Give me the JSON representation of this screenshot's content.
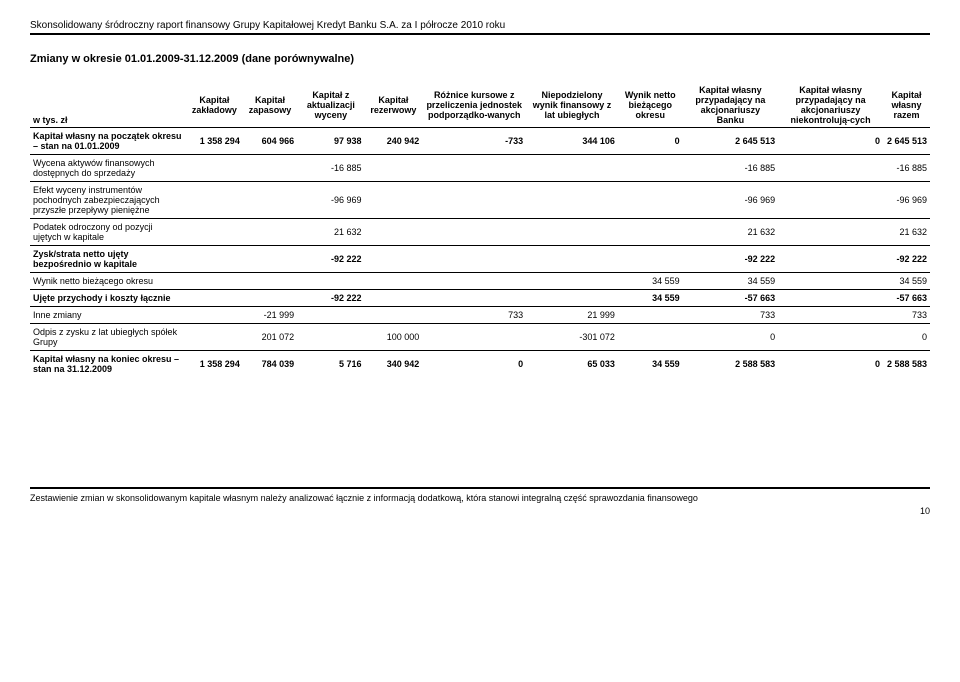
{
  "header": "Skonsolidowany śródroczny raport finansowy Grupy Kapitałowej Kredyt Banku S.A. za I półrocze 2010 roku",
  "title": "Zmiany w okresie 01.01.2009-31.12.2009 (dane porównywalne)",
  "unit_label": "w tys. zł",
  "columns": [
    "Kapitał zakładowy",
    "Kapitał zapasowy",
    "Kapitał z aktualizacji wyceny",
    "Kapitał rezerwowy",
    "Różnice kursowe z przeliczenia jednostek podporządko-wanych",
    "Niepodzielony wynik finansowy z lat ubiegłych",
    "Wynik netto bieżącego okresu",
    "Kapitał własny przypadający na akcjonariuszy Banku",
    "Kapitał własny przypadający na akcjonariuszy niekontrolują-cych",
    "Kapitał własny razem"
  ],
  "rows": [
    {
      "label": "Kapitał własny na początek okresu – stan na 01.01.2009",
      "bold": true,
      "sep": false,
      "cells": [
        "1 358 294",
        "604 966",
        "97 938",
        "240 942",
        "-733",
        "344 106",
        "0",
        "2 645 513",
        "0",
        "2 645 513"
      ]
    },
    {
      "label": "Wycena aktywów finansowych dostępnych do sprzedaży",
      "bold": false,
      "sep": true,
      "cells": [
        "",
        "",
        "-16 885",
        "",
        "",
        "",
        "",
        "-16 885",
        "",
        "-16 885"
      ]
    },
    {
      "label": "Efekt wyceny instrumentów pochodnych zabezpieczających przyszłe przepływy pieniężne",
      "bold": false,
      "sep": true,
      "cells": [
        "",
        "",
        "-96 969",
        "",
        "",
        "",
        "",
        "-96 969",
        "",
        "-96 969"
      ]
    },
    {
      "label": "Podatek odroczony od pozycji ujętych w kapitale",
      "bold": false,
      "sep": true,
      "cells": [
        "",
        "",
        "21 632",
        "",
        "",
        "",
        "",
        "21 632",
        "",
        "21 632"
      ]
    },
    {
      "label": "Zysk/strata netto ujęty bezpośrednio w kapitale",
      "bold": true,
      "sep": true,
      "cells": [
        "",
        "",
        "-92 222",
        "",
        "",
        "",
        "",
        "-92 222",
        "",
        "-92 222"
      ]
    },
    {
      "label": "Wynik netto bieżącego okresu",
      "bold": false,
      "sep": true,
      "cells": [
        "",
        "",
        "",
        "",
        "",
        "",
        "34 559",
        "34 559",
        "",
        "34 559"
      ]
    },
    {
      "label": "Ujęte przychody i koszty łącznie",
      "bold": true,
      "sep": true,
      "cells": [
        "",
        "",
        "-92 222",
        "",
        "",
        "",
        "34 559",
        "-57 663",
        "",
        "-57 663"
      ]
    },
    {
      "label": "Inne zmiany",
      "bold": false,
      "sep": true,
      "cells": [
        "",
        "-21 999",
        "",
        "",
        "733",
        "21 999",
        "",
        "733",
        "",
        "733"
      ]
    },
    {
      "label": "Odpis z zysku z lat ubiegłych spółek Grupy",
      "bold": false,
      "sep": true,
      "cells": [
        "",
        "201 072",
        "",
        "100 000",
        "",
        "-301 072",
        "",
        "0",
        "",
        "0"
      ]
    },
    {
      "label": "Kapitał własny na koniec okresu – stan na 31.12.2009",
      "bold": true,
      "sep": true,
      "cells": [
        "1 358 294",
        "784 039",
        "5 716",
        "340 942",
        "0",
        "65 033",
        "34 559",
        "2 588 583",
        "0",
        "2 588 583"
      ]
    }
  ],
  "footer": "Zestawienie zmian w skonsolidowanym kapitale własnym należy analizować łącznie z informacją dodatkową, która stanowi integralną część sprawozdania finansowego",
  "page": "10"
}
